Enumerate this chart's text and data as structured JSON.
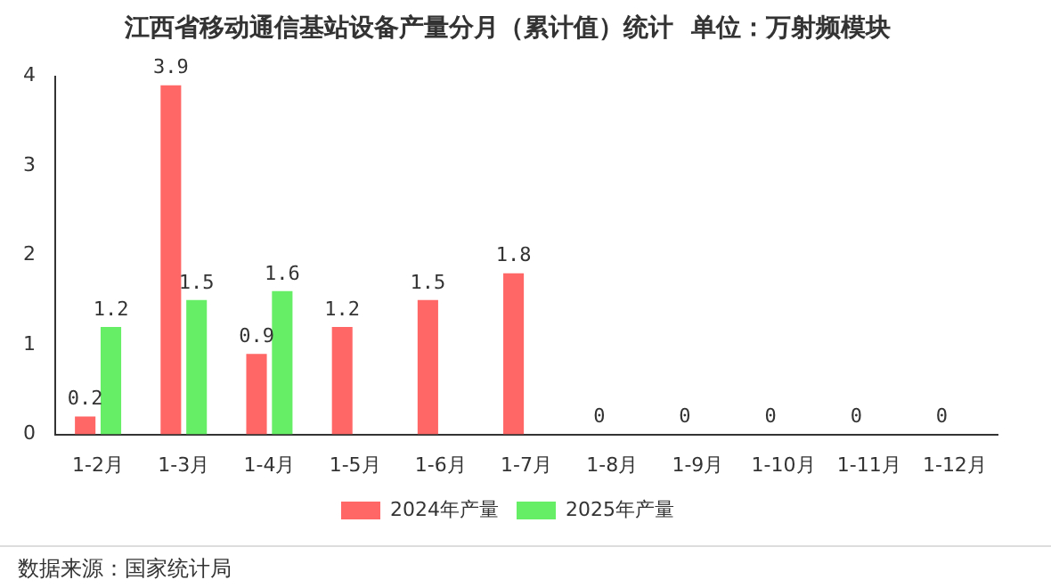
{
  "chart_data": {
    "type": "bar",
    "title": "江西省移动通信基站设备产量分月（累计值）统计  单位：万射频模块",
    "categories": [
      "1-2月",
      "1-3月",
      "1-4月",
      "1-5月",
      "1-6月",
      "1-7月",
      "1-8月",
      "1-9月",
      "1-10月",
      "1-11月",
      "1-12月"
    ],
    "series": [
      {
        "name": "2024年产量",
        "color": "#ff6666",
        "values": [
          0.2,
          3.9,
          0.9,
          1.2,
          1.5,
          1.8,
          0,
          0,
          0,
          0,
          0
        ]
      },
      {
        "name": "2025年产量",
        "color": "#66ee66",
        "values": [
          1.2,
          1.5,
          1.6,
          null,
          null,
          null,
          null,
          null,
          null,
          null,
          null
        ]
      }
    ],
    "ylim": [
      0,
      4
    ],
    "yticks": [
      0,
      1,
      2,
      3,
      4
    ],
    "grid": false,
    "legend": "bottom",
    "data_labels": true,
    "annotations": [
      "数据来源：国家统计局"
    ]
  }
}
